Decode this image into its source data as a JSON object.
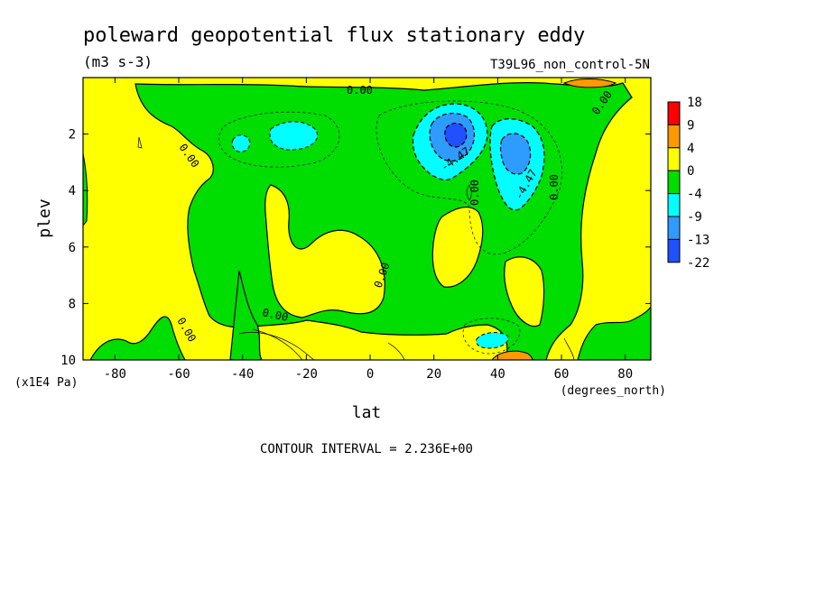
{
  "chart_data": {
    "type": "contour",
    "title": "poleward geopotential flux stationary eddy",
    "units": "(m3 s-3)",
    "run_label": "T39L96_non_control-5N",
    "xlabel": "lat",
    "x_units": "(degrees_north)",
    "ylabel": "plev",
    "y_units": "(x1E4 Pa)",
    "xlim": [
      -90,
      88
    ],
    "ylim": [
      10,
      0
    ],
    "x_ticks": [
      -80,
      -60,
      -40,
      -20,
      0,
      20,
      40,
      60,
      80
    ],
    "x_tick_labels": [
      "-80",
      "-60",
      "-40",
      "-20",
      "0",
      "20",
      "40",
      "60",
      "80"
    ],
    "y_ticks": [
      2,
      4,
      6,
      8,
      10
    ],
    "y_tick_labels": [
      "2",
      "4",
      "6",
      "8",
      "10"
    ],
    "contour_interval_text": "CONTOUR INTERVAL = 2.236E+00",
    "contour_labels": [
      "0.00",
      "0.00",
      "0.00",
      "0.00",
      "0.00",
      "0.00",
      "0.00",
      "0.00",
      "-4.47",
      "-4.47"
    ],
    "colorbar": {
      "labels": [
        "18",
        "9",
        "4",
        "0",
        "-4",
        "-9",
        "-13",
        "-22"
      ],
      "colors": [
        "#ff0000",
        "#ff9900",
        "#ffff00",
        "#00dd00",
        "#00ffff",
        "#2e9bff",
        "#2050ff"
      ]
    },
    "fill_colors": {
      "positive": "#ffff00",
      "near_zero_negative": "#00dd00",
      "negative": "#00ffff",
      "strong_negative": "#2e9bff",
      "very_strong_negative": "#2050ff",
      "strong_positive": "#ff9900"
    },
    "features": [
      {
        "name": "negative-min-nh-20N",
        "lat": 27,
        "plev": 2.0,
        "value": -22
      },
      {
        "name": "negative-min-nh-45N",
        "lat": 45,
        "plev": 2.8,
        "value": -13
      },
      {
        "name": "negative-sh-25S",
        "lat": -25,
        "plev": 2.2,
        "value": -9
      },
      {
        "name": "negative-sh-40S",
        "lat": -40,
        "plev": 2.4,
        "value": -9
      },
      {
        "name": "negative-45N-surface",
        "lat": 40,
        "plev": 9.3,
        "value": -9
      },
      {
        "name": "positive-65N-top",
        "lat": 65,
        "plev": 0.1,
        "value": 9
      },
      {
        "name": "positive-45N-surface",
        "lat": 45,
        "plev": 10,
        "value": 9
      }
    ]
  }
}
